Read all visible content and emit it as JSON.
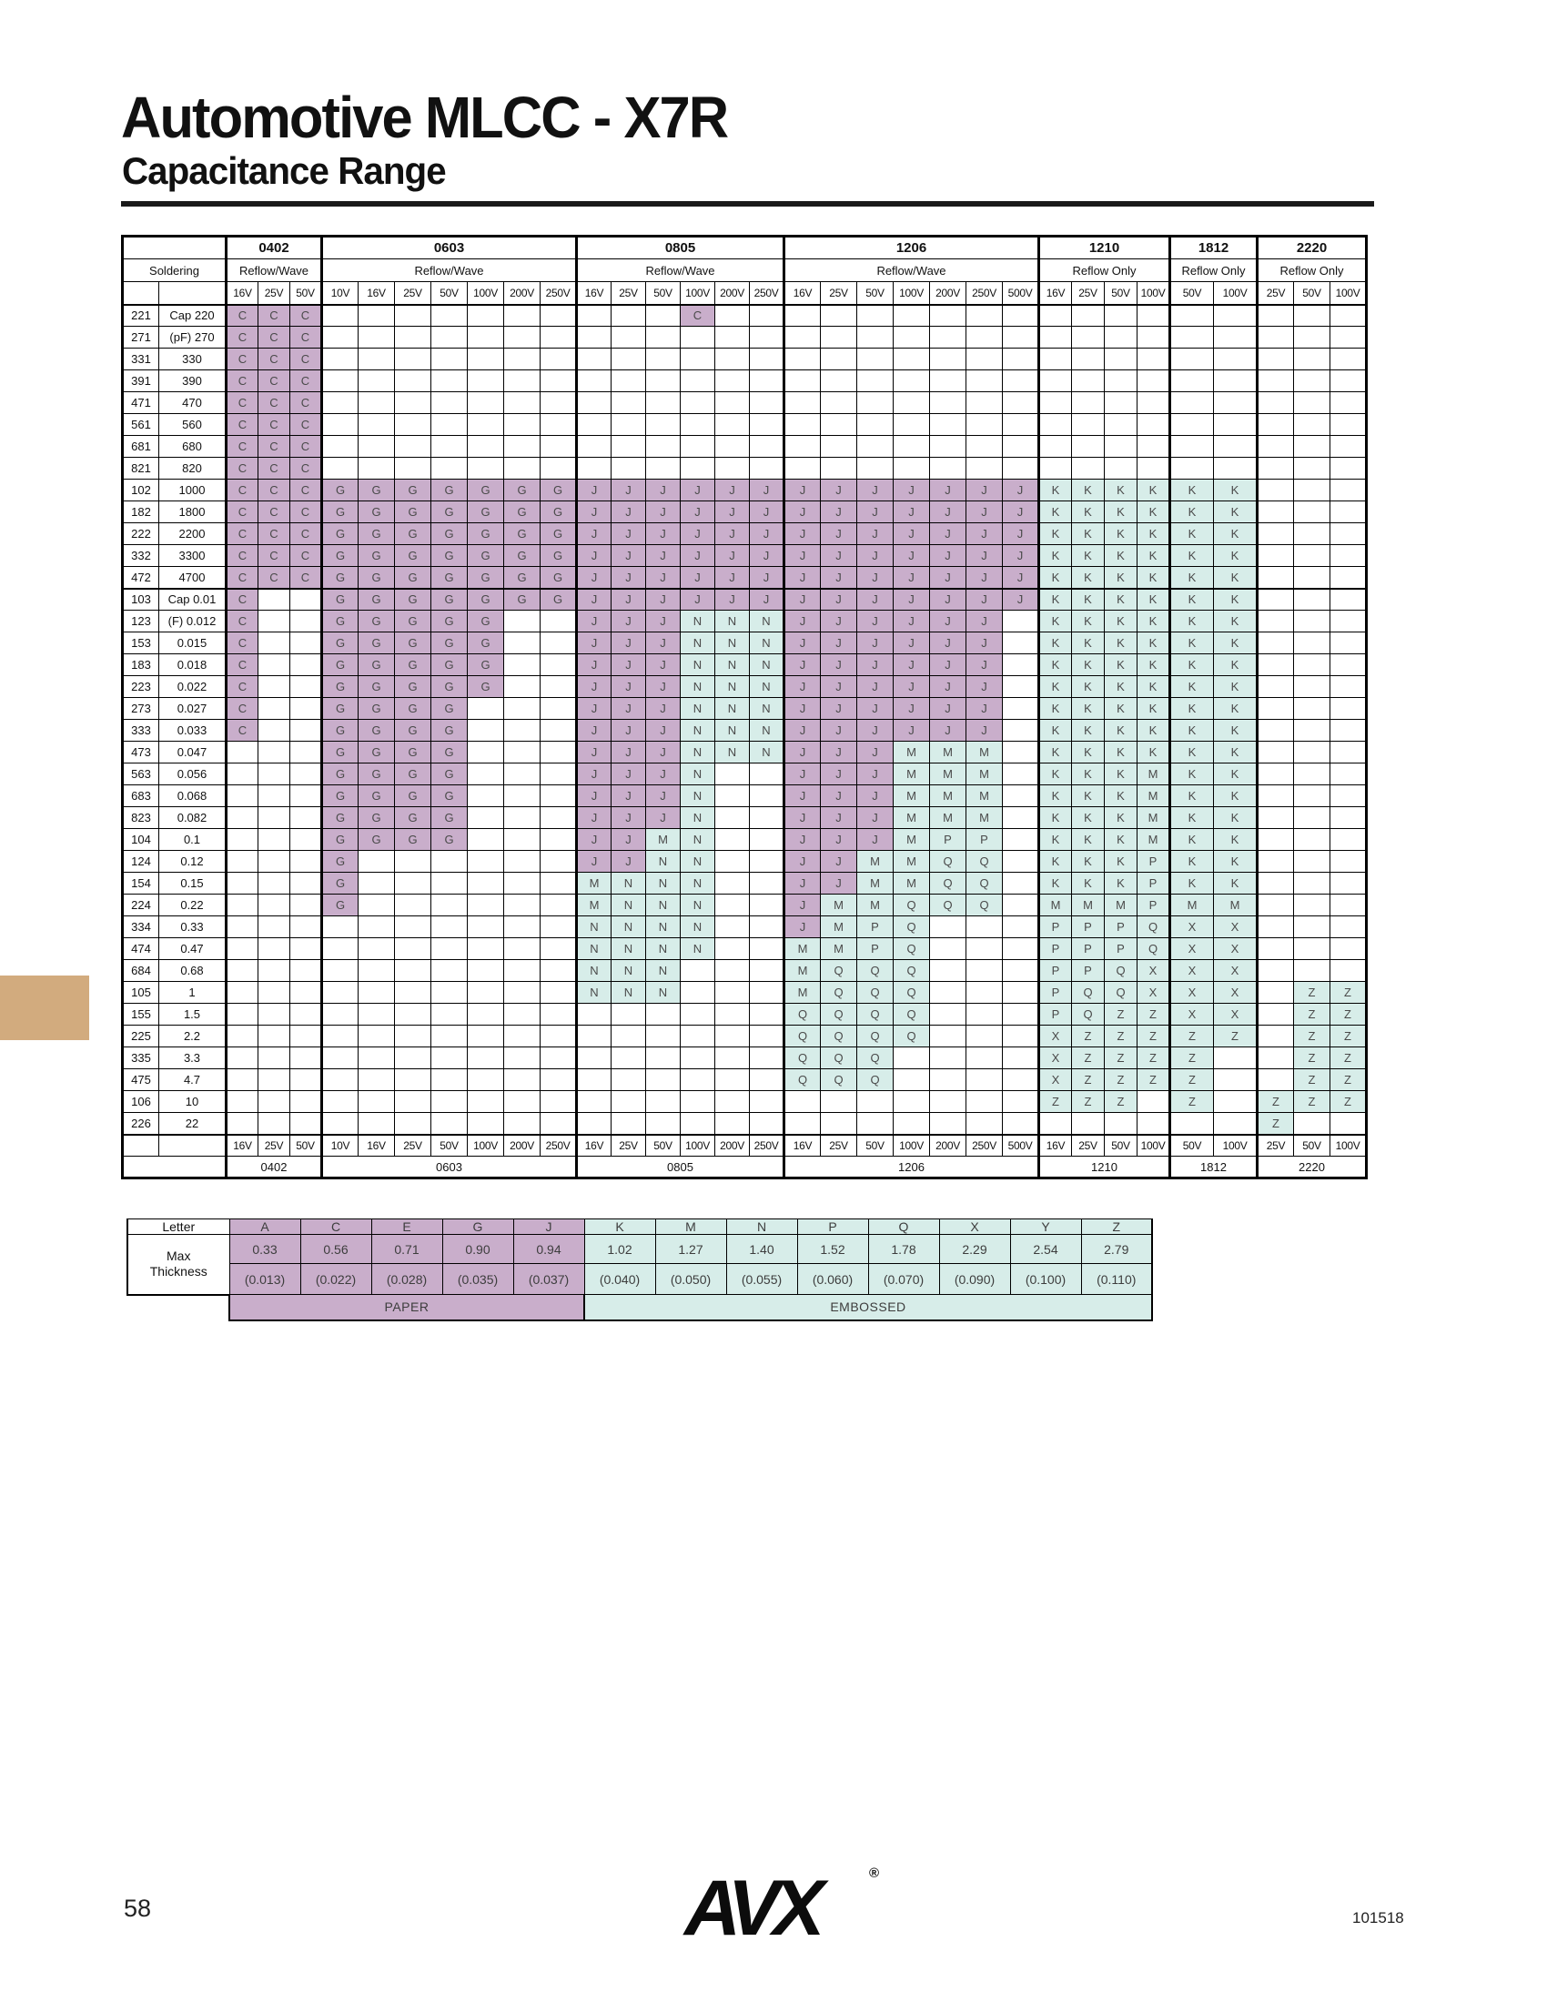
{
  "page": {
    "title": "Automotive MLCC - X7R",
    "subtitle": "Capacitance Range",
    "page_number": "58",
    "doc_number": "101518",
    "logo_text": "AVX",
    "trademark": "®"
  },
  "colors": {
    "paper": "#c9aecb",
    "embossed": "#d7ede9",
    "tan_block": "#d2ab7e"
  },
  "table": {
    "soldering_label": "Soldering",
    "sections": [
      {
        "name": "0402",
        "soldering": "Reflow/Wave",
        "volts": [
          "16V",
          "25V",
          "50V"
        ]
      },
      {
        "name": "0603",
        "soldering": "Reflow/Wave",
        "volts": [
          "10V",
          "16V",
          "25V",
          "50V",
          "100V",
          "200V",
          "250V"
        ]
      },
      {
        "name": "0805",
        "soldering": "Reflow/Wave",
        "volts": [
          "16V",
          "25V",
          "50V",
          "100V",
          "200V",
          "250V"
        ]
      },
      {
        "name": "1206",
        "soldering": "Reflow/Wave",
        "volts": [
          "16V",
          "25V",
          "50V",
          "100V",
          "200V",
          "250V",
          "500V"
        ]
      },
      {
        "name": "1210",
        "soldering": "Reflow Only",
        "volts": [
          "16V",
          "25V",
          "50V",
          "100V"
        ]
      },
      {
        "name": "1812",
        "soldering": "Reflow Only",
        "volts": [
          "50V",
          "100V"
        ]
      },
      {
        "name": "2220",
        "soldering": "Reflow Only",
        "volts": [
          "25V",
          "50V",
          "100V"
        ]
      }
    ],
    "rows": [
      {
        "code": "221",
        "label": "Cap 220",
        "cells": "CCC..........C.................."
      },
      {
        "code": "271",
        "label": "(pF) 270",
        "cells": "CCC............................."
      },
      {
        "code": "331",
        "label": "330",
        "cells": "CCC............................."
      },
      {
        "code": "391",
        "label": "390",
        "cells": "CCC............................."
      },
      {
        "code": "471",
        "label": "470",
        "cells": "CCC............................."
      },
      {
        "code": "561",
        "label": "560",
        "cells": "CCC............................."
      },
      {
        "code": "681",
        "label": "680",
        "cells": "CCC............................."
      },
      {
        "code": "821",
        "label": "820",
        "cells": "CCC............................."
      },
      {
        "code": "102",
        "label": "1000",
        "cells": "CCCGGGGGGGJJJJJJJJJJJJJKKKKKK..."
      },
      {
        "code": "182",
        "label": "1800",
        "cells": "CCCGGGGGGGJJJJJJJJJJJJJKKKKKK..."
      },
      {
        "code": "222",
        "label": "2200",
        "cells": "CCCGGGGGGGJJJJJJJJJJJJJKKKKKK..."
      },
      {
        "code": "332",
        "label": "3300",
        "cells": "CCCGGGGGGGJJJJJJJJJJJJJKKKKKK..."
      },
      {
        "code": "472",
        "label": "4700",
        "cells": "CCCGGGGGGGJJJJJJJJJJJJJKKKKKK..."
      },
      {
        "code": "103",
        "label": "Cap 0.01",
        "cells": "C..GGGGGGGJJJJJJJJJJJJJKKKKKK..."
      },
      {
        "code": "123",
        "label": "(F) 0.012",
        "cells": "C..GGGGG..JJJNNNJJJJJJ.KKKKKK..."
      },
      {
        "code": "153",
        "label": "0.015",
        "cells": "C..GGGGG..JJJNNNJJJJJJ.KKKKKK..."
      },
      {
        "code": "183",
        "label": "0.018",
        "cells": "C..GGGGG..JJJNNNJJJJJJ.KKKKKK..."
      },
      {
        "code": "223",
        "label": "0.022",
        "cells": "C..GGGGG..JJJNNNJJJJJJ.KKKKKK..."
      },
      {
        "code": "273",
        "label": "0.027",
        "cells": "C..GGGG...JJJNNNJJJJJJ.KKKKKK..."
      },
      {
        "code": "333",
        "label": "0.033",
        "cells": "C..GGGG...JJJNNNJJJJJJ.KKKKKK..."
      },
      {
        "code": "473",
        "label": "0.047",
        "cells": "...GGGG...JJJNNNJJJMMM.KKKKKK..."
      },
      {
        "code": "563",
        "label": "0.056",
        "cells": "...GGGG...JJJN..JJJMMM.KKKMKK..."
      },
      {
        "code": "683",
        "label": "0.068",
        "cells": "...GGGG...JJJN..JJJMMM.KKKMKK..."
      },
      {
        "code": "823",
        "label": "0.082",
        "cells": "...GGGG...JJJN..JJJMMM.KKKMKK..."
      },
      {
        "code": "104",
        "label": "0.1",
        "cells": "...GGGG...JJMN..JJJMPP.KKKMKK..."
      },
      {
        "code": "124",
        "label": "0.12",
        "cells": "...G......JJNN..JJMMQQ.KKKPKK..."
      },
      {
        "code": "154",
        "label": "0.15",
        "cells": "...G......MNNN..JJMMQQ.KKKPKK..."
      },
      {
        "code": "224",
        "label": "0.22",
        "cells": "...G......MNNN..JMMQQQ.MMMPMM..."
      },
      {
        "code": "334",
        "label": "0.33",
        "cells": "..........NNNN..JMPQ...PPPQXX..."
      },
      {
        "code": "474",
        "label": "0.47",
        "cells": "..........NNNN..MMPQ...PPPQXX..."
      },
      {
        "code": "684",
        "label": "0.68",
        "cells": "..........NNN...MQQQ...PPQXXX..."
      },
      {
        "code": "105",
        "label": "1",
        "cells": "..........NNN...MQQQ...PQQXXX.ZZ"
      },
      {
        "code": "155",
        "label": "1.5",
        "cells": "................QQQQ...PQZZXX.ZZ"
      },
      {
        "code": "225",
        "label": "2.2",
        "cells": "................QQQQ...XZZZZZ.ZZ"
      },
      {
        "code": "335",
        "label": "3.3",
        "cells": "................QQQ....XZZZZ..ZZ"
      },
      {
        "code": "475",
        "label": "4.7",
        "cells": "................QQQ....XZZZZ..ZZ"
      },
      {
        "code": "106",
        "label": "10",
        "cells": ".......................ZZZ.Z.ZZZ"
      },
      {
        "code": "226",
        "label": "22",
        "cells": ".............................Z.."
      }
    ]
  },
  "legend": {
    "letter_label": "Letter",
    "max_label": "Max",
    "thickness_label": "Thickness",
    "paper_label": "PAPER",
    "embossed_label": "EMBOSSED",
    "paper_letters": [
      "A",
      "C",
      "E",
      "G",
      "J"
    ],
    "embossed_letters": [
      "K",
      "M",
      "N",
      "P",
      "Q",
      "X",
      "Y",
      "Z"
    ],
    "entries": [
      {
        "letter": "A",
        "mm": "0.33",
        "inch": "(0.013)"
      },
      {
        "letter": "C",
        "mm": "0.56",
        "inch": "(0.022)"
      },
      {
        "letter": "E",
        "mm": "0.71",
        "inch": "(0.028)"
      },
      {
        "letter": "G",
        "mm": "0.90",
        "inch": "(0.035)"
      },
      {
        "letter": "J",
        "mm": "0.94",
        "inch": "(0.037)"
      },
      {
        "letter": "K",
        "mm": "1.02",
        "inch": "(0.040)"
      },
      {
        "letter": "M",
        "mm": "1.27",
        "inch": "(0.050)"
      },
      {
        "letter": "N",
        "mm": "1.40",
        "inch": "(0.055)"
      },
      {
        "letter": "P",
        "mm": "1.52",
        "inch": "(0.060)"
      },
      {
        "letter": "Q",
        "mm": "1.78",
        "inch": "(0.070)"
      },
      {
        "letter": "X",
        "mm": "2.29",
        "inch": "(0.090)"
      },
      {
        "letter": "Y",
        "mm": "2.54",
        "inch": "(0.100)"
      },
      {
        "letter": "Z",
        "mm": "2.79",
        "inch": "(0.110)"
      }
    ]
  }
}
